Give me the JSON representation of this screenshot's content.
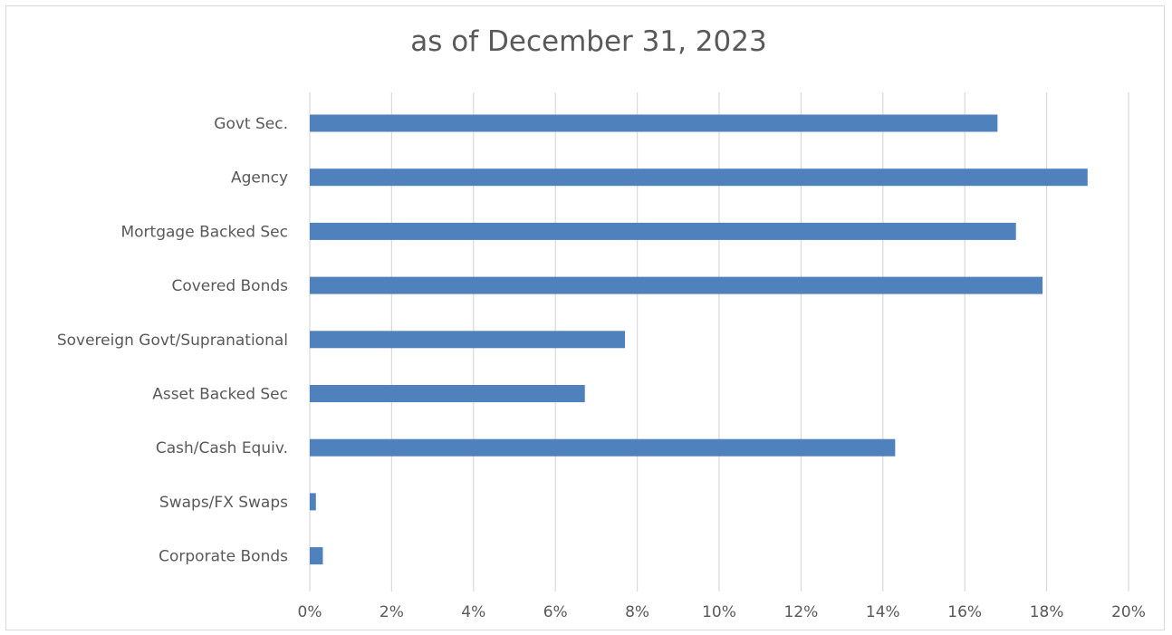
{
  "chart_data": {
    "type": "bar",
    "orientation": "horizontal",
    "title": "as of December 31, 2023",
    "xlabel": "",
    "ylabel": "",
    "categories": [
      "Govt Sec.",
      "Agency",
      "Mortgage Backed Sec",
      "Covered Bonds",
      "Sovereign Govt/Supranational",
      "Asset Backed Sec",
      "Cash/Cash Equiv.",
      "Swaps/FX Swaps",
      "Corporate Bonds"
    ],
    "values": [
      16.8,
      19.0,
      17.25,
      17.9,
      7.7,
      6.72,
      14.3,
      0.15,
      0.32
    ],
    "value_unit": "%",
    "xlim": [
      0,
      20
    ],
    "x_ticks": [
      0,
      2,
      4,
      6,
      8,
      10,
      12,
      14,
      16,
      18,
      20
    ],
    "x_tick_labels": [
      "0%",
      "2%",
      "4%",
      "6%",
      "8%",
      "10%",
      "12%",
      "14%",
      "16%",
      "18%",
      "20%"
    ],
    "grid": "vertical",
    "legend": "none",
    "bar_color": "#4f81bd",
    "grid_color": "#d9d9d9"
  }
}
